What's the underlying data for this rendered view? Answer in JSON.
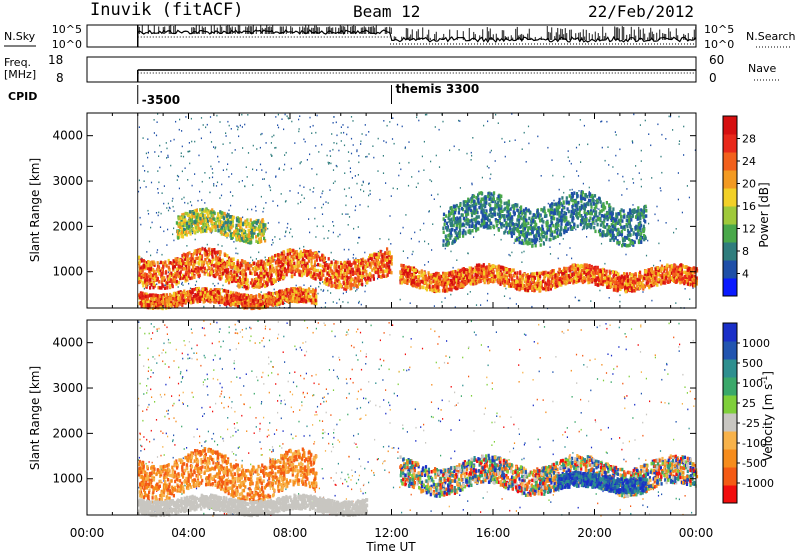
{
  "header": {
    "title": "Inuvik (fitACF)",
    "beam": "Beam 12",
    "date": "22/Feb/2012"
  },
  "panels": {
    "nsky": {
      "label": "N.Sky",
      "ticks": [
        "10^5",
        "10^0"
      ],
      "right_ticks": [
        "10^5",
        "10^0"
      ],
      "right_label": "N.Search"
    },
    "freq": {
      "label1": "Freq.",
      "label2": "[MHz]",
      "ticks": [
        "18",
        "8"
      ],
      "right_ticks": [
        "60",
        "0"
      ],
      "right_label": "Nave"
    },
    "cpid": {
      "label": "CPID",
      "entries": [
        {
          "text": "-3500",
          "time": 2.0
        },
        {
          "text": "themis 3300",
          "time": 12.0
        }
      ]
    }
  },
  "chart_data": [
    {
      "type": "heatmap",
      "name": "power",
      "ylabel": "Slant Range [km]",
      "xlabel": "Time UT",
      "ylim": [
        200,
        4500
      ],
      "xlim": [
        0,
        24
      ],
      "yticks": [
        "1000",
        "2000",
        "3000",
        "4000"
      ],
      "xticks": [
        "00:00",
        "04:00",
        "08:00",
        "12:00",
        "16:00",
        "20:00",
        "00:00"
      ],
      "colorbar": {
        "label": "Power [dB]",
        "tick_labels": [
          "4",
          "8",
          "12",
          "16",
          "20",
          "24",
          "28"
        ],
        "range": [
          0,
          30
        ],
        "colors": [
          "#0a1aff",
          "#1f4fa8",
          "#2f7d7d",
          "#49a84a",
          "#9fc93a",
          "#f2d027",
          "#f39a22",
          "#f2601c",
          "#e8281a",
          "#d60f10"
        ]
      },
      "data_start_time": 2.0,
      "features": [
        {
          "time": [
            2.0,
            12.0
          ],
          "range": [
            800,
            1400
          ],
          "level": "high"
        },
        {
          "time": [
            2.0,
            9.0
          ],
          "range": [
            300,
            600
          ],
          "level": "high"
        },
        {
          "time": [
            12.3,
            24.0
          ],
          "range": [
            700,
            1100
          ],
          "level": "high"
        },
        {
          "time": [
            3.5,
            7.0
          ],
          "range": [
            1800,
            2300
          ],
          "level": "medium"
        },
        {
          "time": [
            14.0,
            22.0
          ],
          "range": [
            1800,
            2600
          ],
          "level": "low"
        }
      ]
    },
    {
      "type": "heatmap",
      "name": "velocity",
      "ylabel": "Slant Range [km]",
      "xlabel": "Time UT",
      "ylim": [
        200,
        4500
      ],
      "xlim": [
        0,
        24
      ],
      "yticks": [
        "1000",
        "2000",
        "3000",
        "4000"
      ],
      "xticks": [
        "00:00",
        "04:00",
        "08:00",
        "12:00",
        "16:00",
        "20:00",
        "00:00"
      ],
      "colorbar": {
        "label": "Velocity [m s-1]",
        "label_main": "Velocity [m s",
        "label_sup": "-1",
        "label_close": "]",
        "tick_labels": [
          "-1000",
          "-500",
          "-100",
          "-25",
          "25",
          "100",
          "500",
          "1000"
        ],
        "range": [
          -1200,
          1200
        ],
        "colors": [
          "#f20d0d",
          "#f45a14",
          "#f68c1c",
          "#f7b24a",
          "#c8c6c1",
          "#7fcf3a",
          "#3aa86a",
          "#2e8f8f",
          "#2255b0",
          "#1a2fc8"
        ]
      },
      "data_start_time": 2.0,
      "features": [
        {
          "time": [
            2.0,
            9.0
          ],
          "range": [
            700,
            1500
          ],
          "level": "negative"
        },
        {
          "time": [
            12.3,
            24.0
          ],
          "range": [
            800,
            1400
          ],
          "level": "mixed"
        },
        {
          "time": [
            18.5,
            22.0
          ],
          "range": [
            800,
            1100
          ],
          "level": "positive"
        },
        {
          "time": [
            2.0,
            11.0
          ],
          "range": [
            300,
            600
          ],
          "level": "ground"
        }
      ]
    }
  ]
}
